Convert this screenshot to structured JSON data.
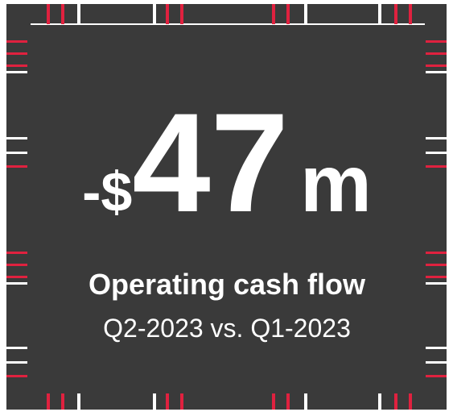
{
  "kpi": {
    "prefix": "-$",
    "value": 47,
    "unit": "m",
    "label": "Operating cash flow",
    "period": "Q2-2023 vs. Q1-2023"
  }
}
